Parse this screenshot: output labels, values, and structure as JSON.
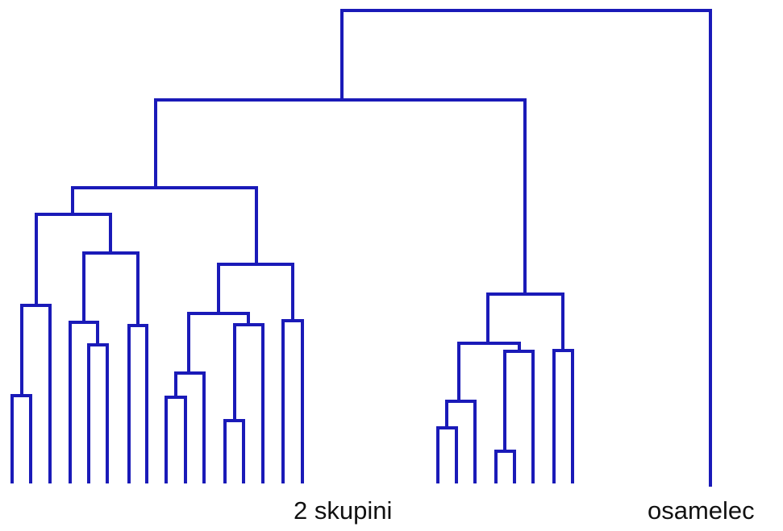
{
  "diagram": {
    "type": "dendrogram",
    "branch_color": "#1a1ab8",
    "labels": {
      "groups": "2 skupini",
      "outlier": "osamelec"
    },
    "leaves_per_group": [
      17,
      7,
      1
    ]
  }
}
